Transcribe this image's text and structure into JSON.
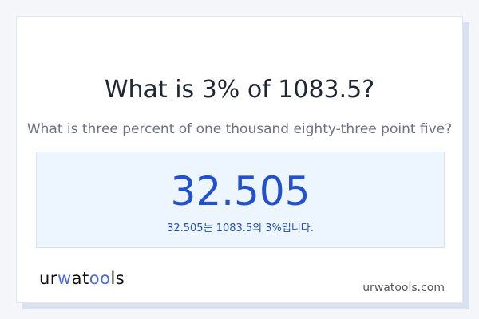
{
  "question": {
    "title": "What is 3% of 1083.5?",
    "subtitle": "What is three percent of one thousand eighty-three point five?"
  },
  "result": {
    "value": "32.505",
    "sentence": "32.505는 1083.5의 3%입니다."
  },
  "footer": {
    "logo_text": "urwatools",
    "logo_parts": [
      "ur",
      "w",
      "at",
      "oo",
      "ls"
    ],
    "domain": "urwatools.com"
  },
  "colors": {
    "accent": "#2150d0",
    "logo_accent": "#4a68e0"
  }
}
